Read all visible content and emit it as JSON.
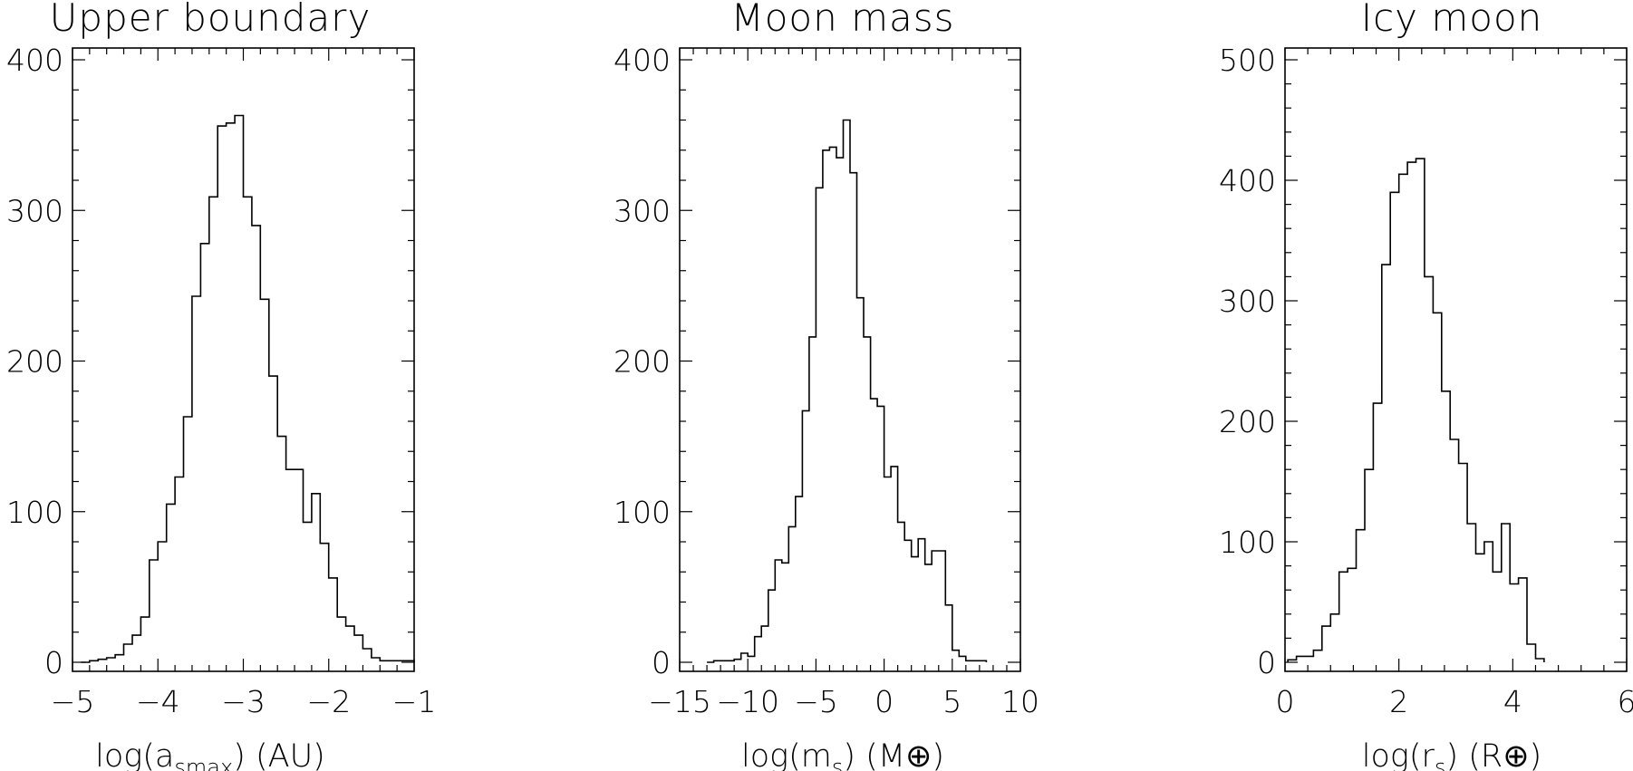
{
  "chart_data": [
    {
      "type": "histogram",
      "title": "Upper boundary",
      "xlabel": {
        "pre": "log(a",
        "sub": "smax",
        "post": ") (AU)"
      },
      "xlim": [
        -5,
        -1
      ],
      "ylim": [
        0,
        400
      ],
      "xticks": [
        -5,
        -4,
        -3,
        -2,
        -1
      ],
      "yticks": [
        0,
        100,
        200,
        300,
        400
      ],
      "y_minor_step": 20,
      "x_minor_step": 0.2,
      "bin_edges_start": -4.9,
      "bin_width": 0.1,
      "counts": [
        0,
        1,
        2,
        3,
        5,
        12,
        18,
        30,
        68,
        80,
        105,
        123,
        163,
        243,
        278,
        309,
        356,
        358,
        363,
        309,
        290,
        241,
        190,
        150,
        128,
        128,
        93,
        112,
        79,
        56,
        30,
        24,
        18,
        9,
        3,
        1,
        1,
        1,
        1
      ],
      "grid": false,
      "legend": "none"
    },
    {
      "type": "histogram",
      "title": "Moon mass",
      "xlabel": {
        "pre": "log(m",
        "sub": "s",
        "post": ") (M⊕)"
      },
      "xlim": [
        -15,
        10
      ],
      "ylim": [
        0,
        400
      ],
      "xticks": [
        -15,
        -10,
        -5,
        0,
        5,
        10
      ],
      "yticks": [
        0,
        100,
        200,
        300,
        400
      ],
      "y_minor_step": 20,
      "x_minor_step": 1,
      "bin_edges_start": -13,
      "bin_width": 0.5,
      "counts": [
        0,
        1,
        1,
        1,
        2,
        6,
        4,
        17,
        24,
        48,
        68,
        66,
        90,
        110,
        167,
        216,
        315,
        340,
        342,
        335,
        360,
        325,
        242,
        216,
        175,
        170,
        123,
        130,
        93,
        81,
        70,
        82,
        65,
        74,
        74,
        38,
        8,
        4,
        1,
        1,
        1
      ],
      "grid": false,
      "legend": "none"
    },
    {
      "type": "histogram",
      "title": "Icy moon",
      "xlabel": {
        "pre": "log(r",
        "sub": "s",
        "post": ") (R⊕)"
      },
      "xlim": [
        0,
        6
      ],
      "ylim": [
        0,
        500
      ],
      "xticks": [
        0,
        2,
        4,
        6
      ],
      "yticks": [
        0,
        100,
        200,
        300,
        400,
        500
      ],
      "y_minor_step": 20,
      "x_minor_step": 0.4,
      "bin_edges_start": 0.05,
      "bin_width": 0.15,
      "counts": [
        2,
        5,
        5,
        10,
        30,
        40,
        75,
        78,
        110,
        160,
        215,
        330,
        390,
        405,
        415,
        418,
        320,
        290,
        225,
        185,
        165,
        115,
        90,
        100,
        75,
        115,
        65,
        70,
        15,
        3
      ],
      "grid": false,
      "legend": "none"
    }
  ]
}
